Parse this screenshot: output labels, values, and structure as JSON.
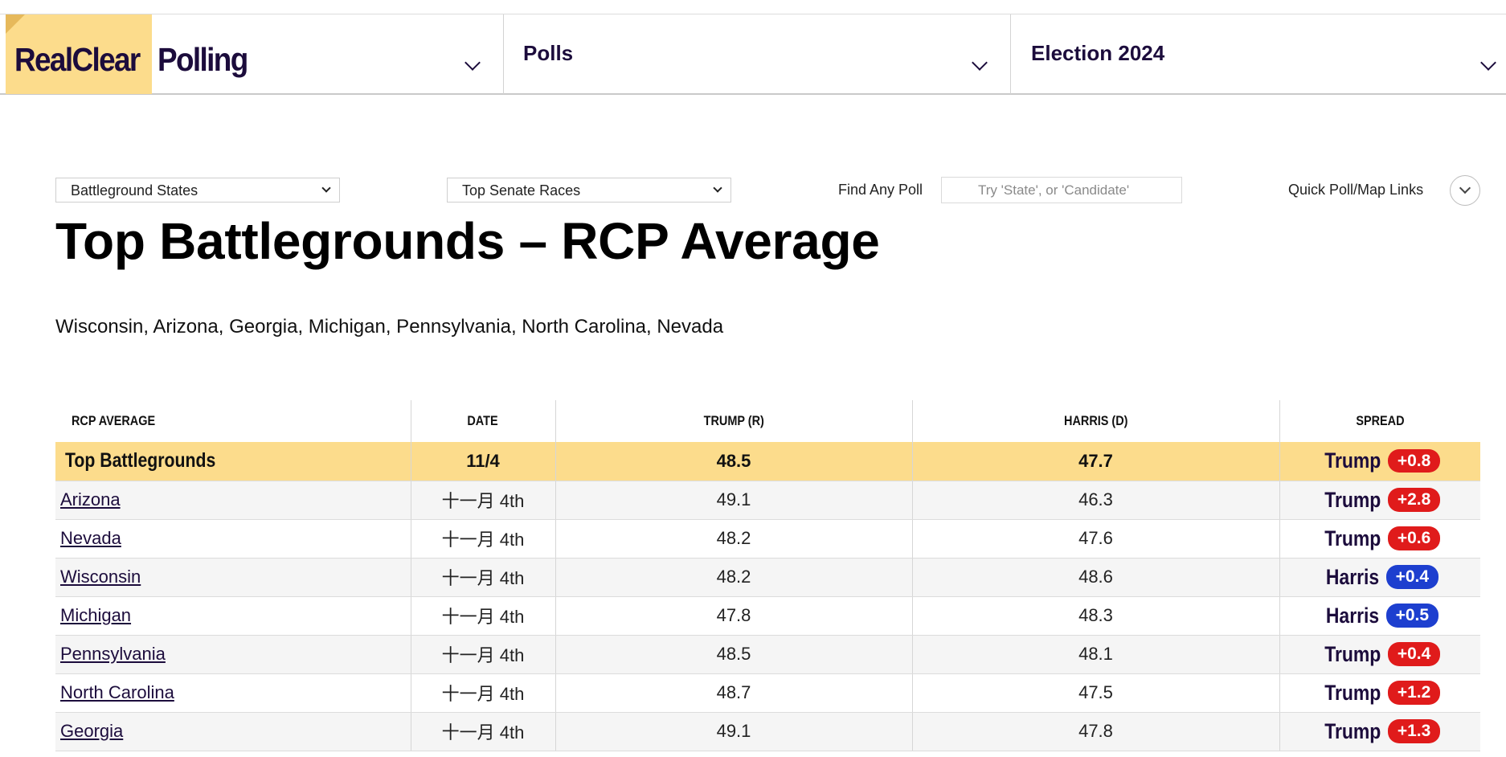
{
  "nav": {
    "logo_part1": "RealClear",
    "logo_part2": "Polling",
    "menu2_label": "Polls",
    "menu3_label": "Election 2024"
  },
  "filters": {
    "select1_value": "Battleground States",
    "select2_value": "Top Senate Races",
    "find_label": "Find Any Poll",
    "find_placeholder": "Try 'State', or 'Candidate'",
    "quick_label": "Quick Poll/Map Links"
  },
  "page": {
    "title": "Top Battlegrounds – RCP Average",
    "subtitle": "Wisconsin, Arizona, Georgia, Michigan, Pennsylvania, North Carolina, Nevada"
  },
  "table": {
    "headers": [
      "RCP AVERAGE",
      "DATE",
      "TRUMP (R)",
      "HARRIS (D)",
      "SPREAD"
    ],
    "summary": {
      "name": "Top Battlegrounds",
      "date": "11/4",
      "trump": "48.5",
      "harris": "47.7",
      "spread_leader": "Trump",
      "spread_value": "+0.8",
      "spread_color": "#e01b1b"
    },
    "rows": [
      {
        "state": "Arizona",
        "date": "十一月 4th",
        "trump": "49.1",
        "harris": "46.3",
        "leader": "Trump",
        "spread": "+2.8",
        "color": "#e01b1b"
      },
      {
        "state": "Nevada",
        "date": "十一月 4th",
        "trump": "48.2",
        "harris": "47.6",
        "leader": "Trump",
        "spread": "+0.6",
        "color": "#e01b1b"
      },
      {
        "state": "Wisconsin",
        "date": "十一月 4th",
        "trump": "48.2",
        "harris": "48.6",
        "leader": "Harris",
        "spread": "+0.4",
        "color": "#1d3fcf"
      },
      {
        "state": "Michigan",
        "date": "十一月 4th",
        "trump": "47.8",
        "harris": "48.3",
        "leader": "Harris",
        "spread": "+0.5",
        "color": "#1d3fcf"
      },
      {
        "state": "Pennsylvania",
        "date": "十一月 4th",
        "trump": "48.5",
        "harris": "48.1",
        "leader": "Trump",
        "spread": "+0.4",
        "color": "#e01b1b"
      },
      {
        "state": "North Carolina",
        "date": "十一月 4th",
        "trump": "48.7",
        "harris": "47.5",
        "leader": "Trump",
        "spread": "+1.2",
        "color": "#e01b1b"
      },
      {
        "state": "Georgia",
        "date": "十一月 4th",
        "trump": "49.1",
        "harris": "47.8",
        "leader": "Trump",
        "spread": "+1.3",
        "color": "#e01b1b"
      }
    ]
  },
  "colors": {
    "brand_yellow": "#fcdc8c",
    "brand_navy": "#1c0c3c",
    "republican_red": "#e01b1b",
    "democrat_blue": "#1d3fcf"
  }
}
